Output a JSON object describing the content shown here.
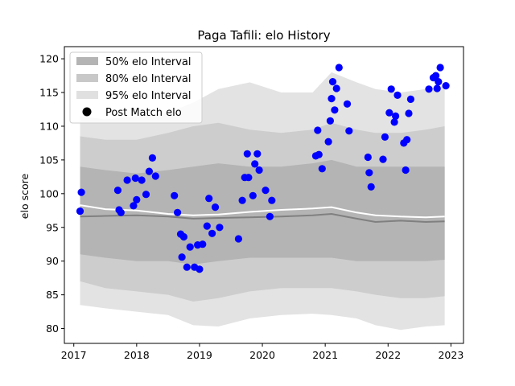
{
  "chart_data": {
    "type": "scatter",
    "title": "Paga Tafili: elo History",
    "xlabel": "",
    "ylabel": "elo score",
    "xlim": [
      2016.85,
      2023.2
    ],
    "ylim": [
      77.8,
      121.8
    ],
    "x_ticks": [
      2017,
      2018,
      2019,
      2020,
      2021,
      2022,
      2023
    ],
    "x_tick_labels": [
      "2017",
      "2018",
      "2019",
      "2020",
      "2021",
      "2022",
      "2023"
    ],
    "y_ticks": [
      80,
      85,
      90,
      95,
      100,
      105,
      110,
      115,
      120
    ],
    "y_tick_labels": [
      "80",
      "85",
      "90",
      "95",
      "100",
      "105",
      "110",
      "115",
      "120"
    ],
    "grid": false,
    "legend_position": "top-left",
    "legend": [
      {
        "label": "50% elo Interval",
        "kind": "band",
        "color": "#b4b4b4"
      },
      {
        "label": "80% elo Interval",
        "kind": "band",
        "color": "#c8c8c8"
      },
      {
        "label": "95% elo Interval",
        "kind": "band",
        "color": "#e0e0e0"
      },
      {
        "label": "Post Match elo",
        "kind": "marker",
        "color": "#000000"
      }
    ],
    "colors": {
      "band50": "#b4b4b4",
      "band80": "#cdcdcd",
      "band95": "#e3e3e3",
      "median_line": "#808080",
      "mean_line": "#ffffff",
      "points": "#0000ff"
    },
    "bands": {
      "x": [
        2017.1,
        2017.5,
        2018.0,
        2018.5,
        2018.9,
        2019.3,
        2019.8,
        2020.3,
        2020.8,
        2021.1,
        2021.5,
        2021.8,
        2022.2,
        2022.6,
        2022.9
      ],
      "band95_low": [
        83.5,
        83.0,
        82.5,
        82.0,
        80.5,
        80.3,
        81.5,
        82.0,
        82.2,
        82.0,
        81.5,
        80.5,
        79.8,
        80.3,
        80.5
      ],
      "band95_high": [
        111.5,
        111.0,
        111.5,
        112.0,
        113.5,
        115.5,
        116.5,
        115.0,
        115.0,
        118.0,
        116.5,
        115.5,
        115.0,
        115.5,
        116.0
      ],
      "band80_low": [
        87.0,
        86.0,
        85.5,
        85.0,
        84.0,
        84.5,
        85.5,
        86.0,
        86.0,
        86.0,
        85.5,
        85.0,
        84.5,
        84.5,
        84.8
      ],
      "band80_high": [
        108.5,
        108.0,
        108.0,
        109.0,
        110.0,
        110.5,
        109.5,
        109.0,
        109.5,
        110.5,
        109.5,
        109.0,
        109.0,
        109.5,
        110.0
      ],
      "band50_low": [
        91.0,
        90.5,
        90.0,
        90.0,
        89.5,
        90.0,
        90.5,
        90.5,
        90.5,
        90.5,
        90.0,
        90.0,
        90.0,
        90.0,
        90.2
      ],
      "band50_high": [
        104.0,
        103.5,
        103.0,
        103.5,
        104.0,
        104.5,
        104.0,
        104.0,
        104.5,
        105.0,
        104.0,
        104.0,
        104.0,
        104.0,
        104.0
      ],
      "median": [
        96.6,
        96.7,
        96.8,
        96.6,
        96.3,
        96.4,
        96.5,
        96.6,
        96.8,
        97.0,
        96.3,
        95.8,
        96.0,
        95.8,
        95.9
      ],
      "mean": [
        98.3,
        97.7,
        97.5,
        97.0,
        96.8,
        96.9,
        97.3,
        97.6,
        97.8,
        98.0,
        97.2,
        96.8,
        96.6,
        96.5,
        96.6
      ]
    },
    "points": {
      "x": [
        2017.1,
        2017.12,
        2017.7,
        2017.72,
        2017.75,
        2017.85,
        2017.95,
        2017.98,
        2018.0,
        2018.08,
        2018.15,
        2018.2,
        2018.25,
        2018.3,
        2018.6,
        2018.65,
        2018.7,
        2018.72,
        2018.75,
        2018.8,
        2018.85,
        2018.92,
        2018.97,
        2019.0,
        2019.05,
        2019.12,
        2019.15,
        2019.2,
        2019.25,
        2019.32,
        2019.62,
        2019.68,
        2019.72,
        2019.76,
        2019.78,
        2019.85,
        2019.88,
        2019.92,
        2019.95,
        2020.05,
        2020.12,
        2020.15,
        2020.85,
        2020.88,
        2020.9,
        2020.95,
        2021.05,
        2021.08,
        2021.1,
        2021.12,
        2021.15,
        2021.18,
        2021.22,
        2021.35,
        2021.38,
        2021.68,
        2021.7,
        2021.73,
        2021.92,
        2021.95,
        2022.02,
        2022.05,
        2022.1,
        2022.12,
        2022.15,
        2022.25,
        2022.28,
        2022.3,
        2022.33,
        2022.36,
        2022.65,
        2022.72,
        2022.76,
        2022.78,
        2022.8,
        2022.83,
        2022.92
      ],
      "y": [
        97.4,
        100.2,
        100.5,
        97.6,
        97.2,
        102.0,
        98.2,
        102.3,
        99.1,
        102.0,
        99.9,
        103.3,
        105.3,
        102.6,
        99.7,
        97.2,
        94.0,
        90.6,
        93.6,
        89.1,
        92.1,
        89.1,
        92.4,
        88.8,
        92.5,
        95.2,
        99.3,
        94.1,
        98.0,
        95.0,
        93.3,
        99.0,
        102.4,
        105.9,
        102.4,
        99.7,
        104.4,
        105.9,
        103.5,
        100.5,
        96.6,
        99.0,
        105.6,
        109.4,
        105.8,
        103.7,
        107.7,
        110.8,
        114.1,
        116.6,
        112.4,
        115.6,
        118.7,
        113.3,
        109.3,
        105.4,
        103.1,
        101.0,
        105.1,
        108.4,
        112.0,
        115.5,
        110.6,
        111.5,
        114.6,
        107.5,
        103.5,
        108.0,
        111.9,
        114.0,
        115.5,
        117.2,
        117.5,
        115.6,
        116.6,
        118.7,
        116.0
      ]
    }
  }
}
